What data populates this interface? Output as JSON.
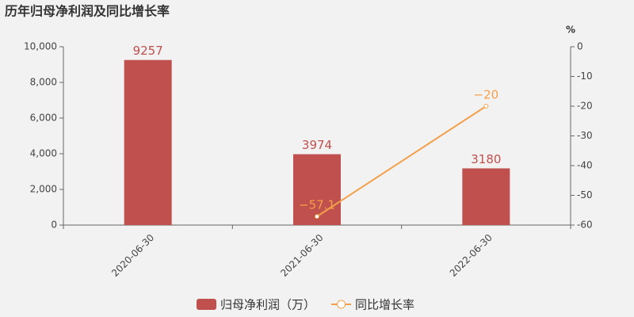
{
  "chart_data": {
    "type": "bar-line",
    "title": "历年归母净利润及同比增长率",
    "categories": [
      "2020-06-30",
      "2021-06-30",
      "2022-06-30"
    ],
    "series": [
      {
        "name": "归母净利润（万）",
        "type": "bar",
        "color": "#c0504d",
        "values": [
          9257,
          3974,
          3180
        ]
      },
      {
        "name": "同比增长率",
        "type": "line",
        "axis": "y2",
        "color": "#f4a04a",
        "values": [
          null,
          -57.1,
          -20
        ],
        "value_labels": [
          null,
          "−57.1",
          "−20"
        ]
      }
    ],
    "ylim": [
      0,
      10000
    ],
    "yticks": [
      0,
      {
        "value": 2000,
        "label": "2,000"
      },
      {
        "value": 4000,
        "label": "4,000"
      },
      {
        "value": 6000,
        "label": "6,000"
      },
      {
        "value": 8000,
        "label": "8,000"
      },
      {
        "value": 10000,
        "label": "10,000"
      }
    ],
    "y2label": "%",
    "y2lim": [
      -60,
      0
    ],
    "y2ticks": [
      -60,
      -50,
      -40,
      -30,
      -20,
      -10,
      0
    ]
  }
}
